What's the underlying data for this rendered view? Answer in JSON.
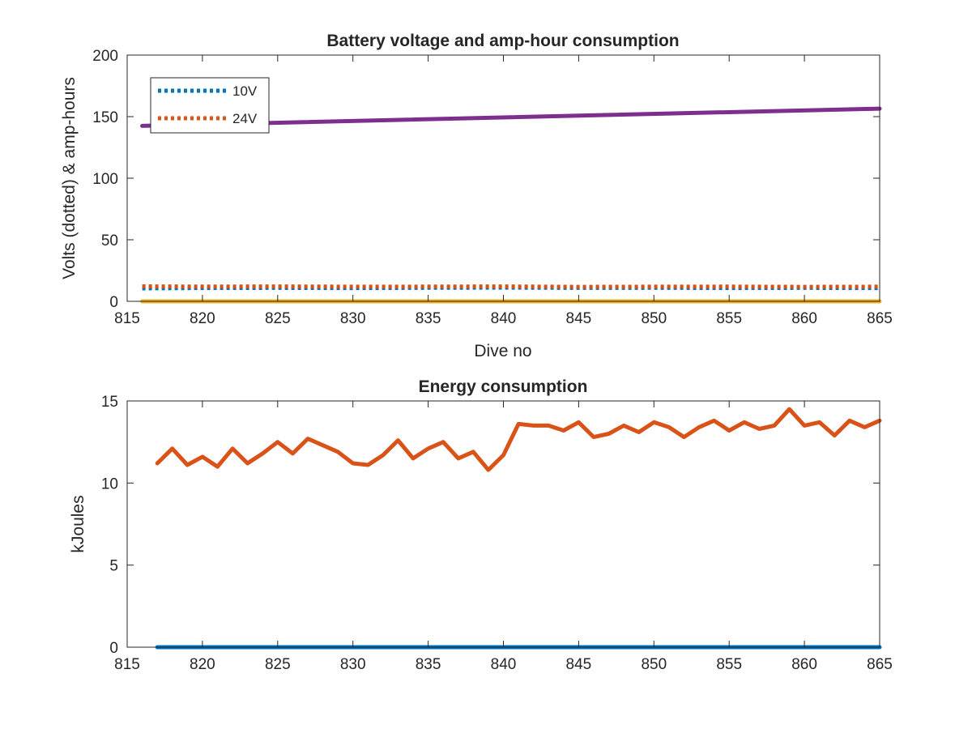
{
  "chart_data": [
    {
      "type": "line",
      "title": "Battery voltage and amp-hour consumption",
      "xlabel": "Dive no",
      "ylabel": "Volts (dotted) & amp-hours",
      "xlim": [
        815,
        865
      ],
      "ylim": [
        0,
        200
      ],
      "xticks": [
        "815",
        "820",
        "825",
        "830",
        "835",
        "840",
        "845",
        "850",
        "855",
        "860",
        "865"
      ],
      "yticks": [
        "0",
        "50",
        "100",
        "150",
        "200"
      ],
      "legend": {
        "placement": "top-left",
        "entries": [
          "10V",
          "24V"
        ]
      },
      "series": [
        {
          "name": "10V",
          "style": "dotted",
          "color": "#0072BD",
          "x": [
            816,
            820,
            825,
            830,
            835,
            840,
            845,
            850,
            855,
            860,
            865
          ],
          "y": [
            10.5,
            10.8,
            10.9,
            10.7,
            11,
            11.1,
            10.9,
            11,
            10.8,
            10.9,
            10.7
          ]
        },
        {
          "name": "24V",
          "style": "dotted",
          "color": "#D95319",
          "x": [
            816,
            820,
            825,
            830,
            835,
            840,
            845,
            850,
            855,
            860,
            865
          ],
          "y": [
            12.2,
            12,
            12.1,
            11.9,
            12,
            12.1,
            11.8,
            11.9,
            12,
            11.8,
            11.9
          ]
        },
        {
          "style": "solid",
          "color": "#7E2F8E",
          "x": [
            816,
            865
          ],
          "y": [
            142.5,
            156.5
          ]
        },
        {
          "style": "solid",
          "color": "#EDB120",
          "x": [
            816,
            865
          ],
          "y": [
            0,
            0
          ]
        }
      ]
    },
    {
      "type": "line",
      "title": "Energy consumption",
      "xlabel": "",
      "ylabel": "kJoules",
      "xlim": [
        815,
        865
      ],
      "ylim": [
        0,
        15
      ],
      "xticks": [
        "815",
        "820",
        "825",
        "830",
        "835",
        "840",
        "845",
        "850",
        "855",
        "860",
        "865"
      ],
      "yticks": [
        "0",
        "5",
        "10",
        "15"
      ],
      "series": [
        {
          "style": "solid",
          "color": "#D95319",
          "x": [
            817,
            818,
            819,
            820,
            821,
            822,
            823,
            824,
            825,
            826,
            827,
            828,
            829,
            830,
            831,
            832,
            833,
            834,
            835,
            836,
            837,
            838,
            839,
            840,
            841,
            842,
            843,
            844,
            845,
            846,
            847,
            848,
            849,
            850,
            851,
            852,
            853,
            854,
            855,
            856,
            857,
            858,
            859,
            860,
            861,
            862,
            863,
            864,
            865
          ],
          "y": [
            11.2,
            12.1,
            11.1,
            11.6,
            11.0,
            12.1,
            11.2,
            11.8,
            12.5,
            11.8,
            12.7,
            12.3,
            11.9,
            11.2,
            11.1,
            11.7,
            12.6,
            11.5,
            12.1,
            12.5,
            11.5,
            11.9,
            10.8,
            11.7,
            13.6,
            13.5,
            13.5,
            13.2,
            13.7,
            12.8,
            13.0,
            13.5,
            13.1,
            13.7,
            13.4,
            12.8,
            13.4,
            13.8,
            13.2,
            13.7,
            13.3,
            13.5,
            14.5,
            13.5,
            13.7,
            12.9,
            13.8,
            13.4,
            13.8
          ]
        },
        {
          "style": "solid",
          "color": "#0072BD",
          "x": [
            817,
            865
          ],
          "y": [
            0,
            0
          ]
        }
      ]
    }
  ]
}
